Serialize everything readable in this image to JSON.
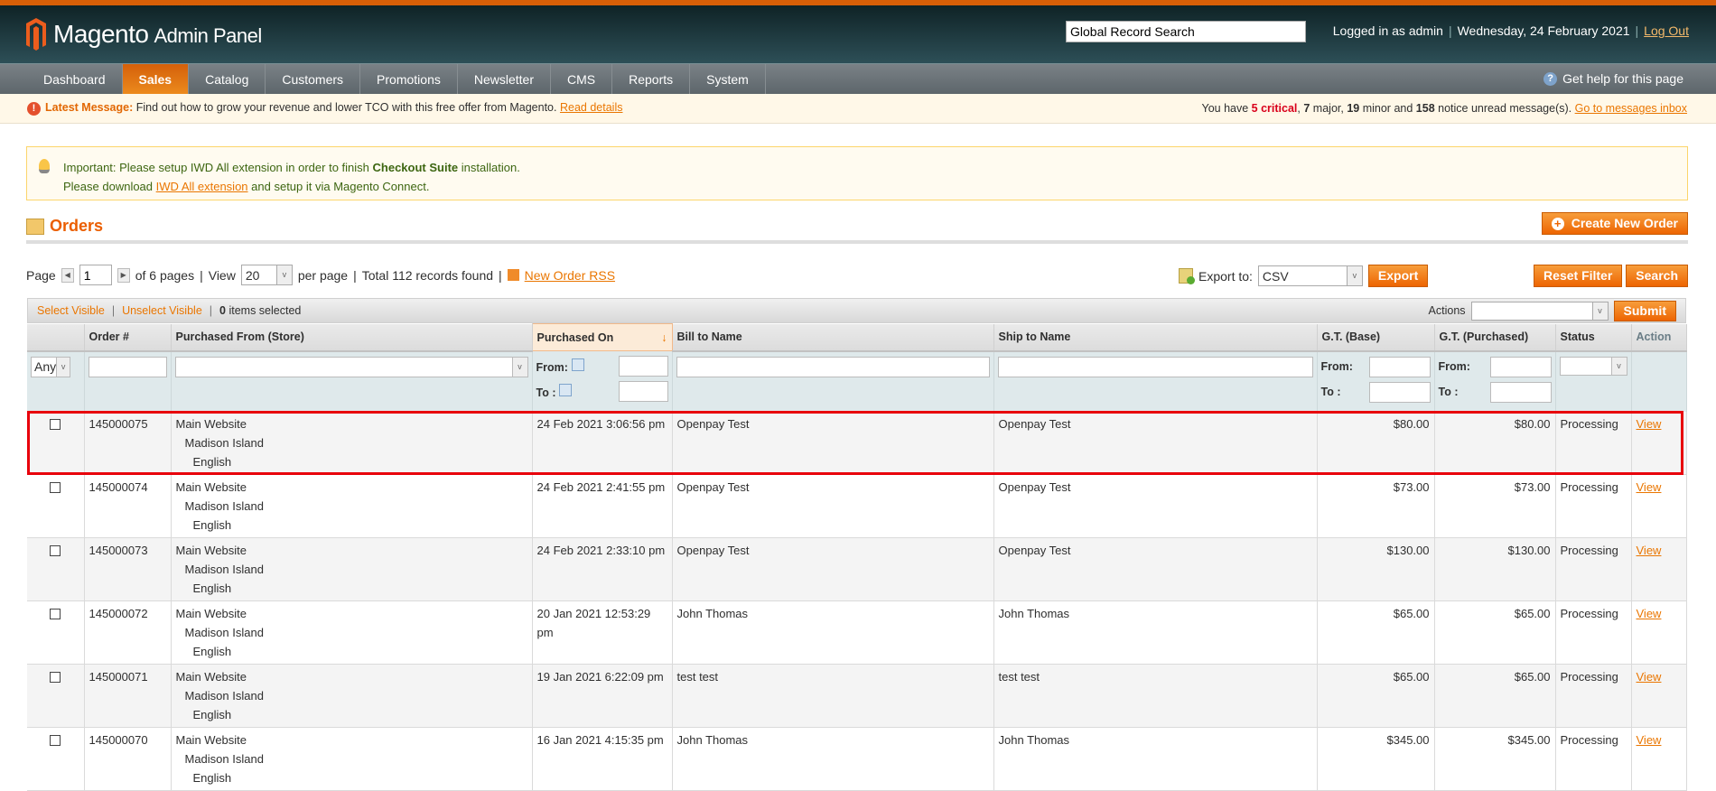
{
  "header": {
    "logo_main": "Magento",
    "logo_sub": "Admin Panel",
    "search_placeholder": "Global Record Search",
    "logged_in": "Logged in as admin",
    "date": "Wednesday, 24 February 2021",
    "logout": "Log Out"
  },
  "nav": {
    "items": [
      "Dashboard",
      "Sales",
      "Catalog",
      "Customers",
      "Promotions",
      "Newsletter",
      "CMS",
      "Reports",
      "System"
    ],
    "active": "Sales",
    "help": "Get help for this page"
  },
  "message": {
    "label": "Latest Message:",
    "text": "Find out how to grow your revenue and lower TCO with this free offer from Magento.",
    "link": "Read details",
    "prefix": "You have",
    "critical": "5 critical",
    "major_n": "7",
    "major": "major,",
    "minor_n": "19",
    "minor": "minor and",
    "notice_n": "158",
    "notice": "notice unread message(s).",
    "inbox": "Go to messages inbox"
  },
  "notice": {
    "l1a": "Important: Please setup IWD All extension in order to finish",
    "l1b": "Checkout Suite",
    "l1c": "installation.",
    "l2a": "Please download",
    "l2link": "IWD All extension",
    "l2b": "and setup it via Magento Connect."
  },
  "page": {
    "title": "Orders",
    "create": "Create New Order"
  },
  "pager": {
    "page_label": "Page",
    "page": "1",
    "of_pages": "of 6 pages",
    "view": "View",
    "per_page_value": "20",
    "per_page": "per page",
    "total": "Total 112 records found",
    "rss": "New Order RSS"
  },
  "export": {
    "label": "Export to:",
    "format": "CSV",
    "button": "Export"
  },
  "buttons": {
    "reset": "Reset Filter",
    "search": "Search",
    "submit": "Submit"
  },
  "mass": {
    "select_visible": "Select Visible",
    "unselect_visible": "Unselect Visible",
    "count": "0",
    "selected": "items selected",
    "actions": "Actions"
  },
  "columns": [
    "Order #",
    "Purchased From (Store)",
    "Purchased On",
    "Bill to Name",
    "Ship to Name",
    "G.T. (Base)",
    "G.T. (Purchased)",
    "Status",
    "Action"
  ],
  "filters": {
    "any": "Any",
    "from": "From:",
    "to": "To :"
  },
  "colors": {
    "accent": "#eb5e00",
    "highlight": "#e8000b"
  },
  "rows": [
    {
      "order": "145000075",
      "store": [
        "Main Website",
        "Madison Island",
        "English"
      ],
      "date": "24 Feb 2021 3:06:56 pm",
      "bill": "Openpay Test",
      "ship": "Openpay Test",
      "base": "$80.00",
      "purchased": "$80.00",
      "status": "Processing",
      "action": "View"
    },
    {
      "order": "145000074",
      "store": [
        "Main Website",
        "Madison Island",
        "English"
      ],
      "date": "24 Feb 2021 2:41:55 pm",
      "bill": "Openpay Test",
      "ship": "Openpay Test",
      "base": "$73.00",
      "purchased": "$73.00",
      "status": "Processing",
      "action": "View"
    },
    {
      "order": "145000073",
      "store": [
        "Main Website",
        "Madison Island",
        "English"
      ],
      "date": "24 Feb 2021 2:33:10 pm",
      "bill": "Openpay Test",
      "ship": "Openpay Test",
      "base": "$130.00",
      "purchased": "$130.00",
      "status": "Processing",
      "action": "View"
    },
    {
      "order": "145000072",
      "store": [
        "Main Website",
        "Madison Island",
        "English"
      ],
      "date": "20 Jan 2021 12:53:29 pm",
      "bill": "John Thomas",
      "ship": "John Thomas",
      "base": "$65.00",
      "purchased": "$65.00",
      "status": "Processing",
      "action": "View"
    },
    {
      "order": "145000071",
      "store": [
        "Main Website",
        "Madison Island",
        "English"
      ],
      "date": "19 Jan 2021 6:22:09 pm",
      "bill": "test test",
      "ship": "test test",
      "base": "$65.00",
      "purchased": "$65.00",
      "status": "Processing",
      "action": "View"
    },
    {
      "order": "145000070",
      "store": [
        "Main Website",
        "Madison Island",
        "English"
      ],
      "date": "16 Jan 2021 4:15:35 pm",
      "bill": "John Thomas",
      "ship": "John Thomas",
      "base": "$345.00",
      "purchased": "$345.00",
      "status": "Processing",
      "action": "View"
    }
  ]
}
